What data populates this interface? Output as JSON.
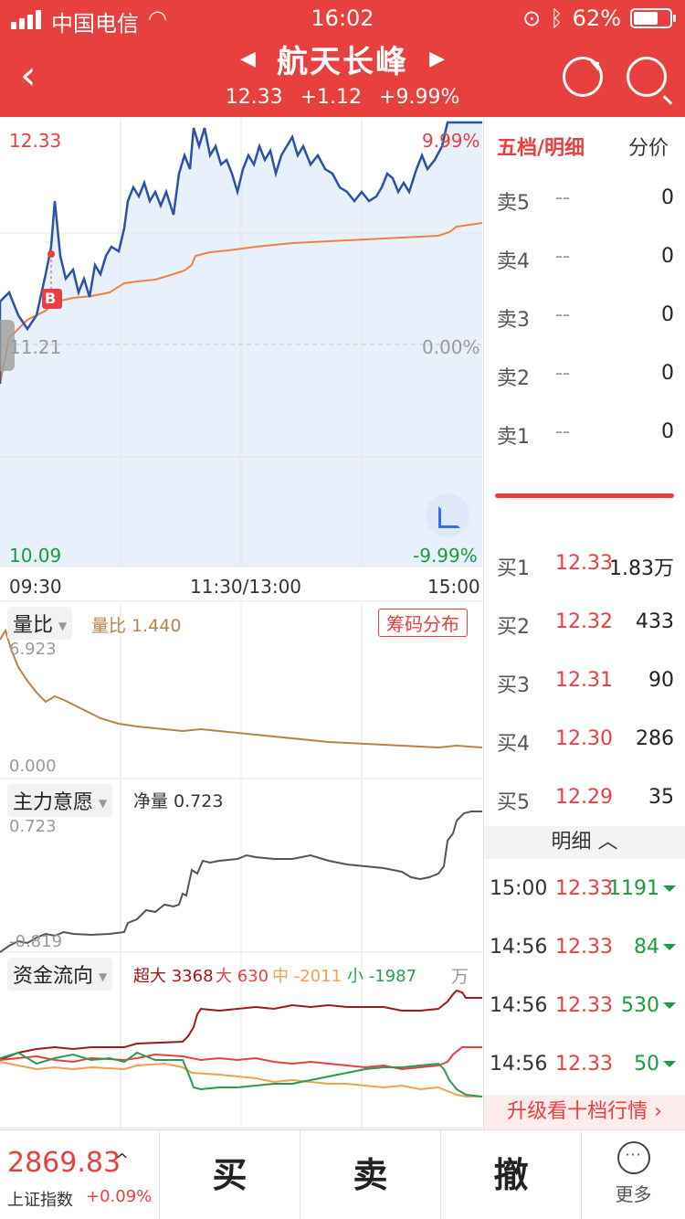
{
  "status": {
    "carrier": "中国电信",
    "time": "16:02",
    "battery": "62%"
  },
  "header": {
    "title": "航天长峰",
    "price": "12.33",
    "change": "+1.12",
    "change_pct": "+9.99%"
  },
  "chart": {
    "price_high": "12.33",
    "price_mid": "11.21",
    "price_low": "10.09",
    "pct_high": "9.99%",
    "pct_mid": "0.00%",
    "pct_low": "-9.99%",
    "time_start": "09:30",
    "time_mid": "11:30/13:00",
    "time_end": "15:00",
    "buy_marker": "B",
    "volume_ratio": {
      "tag": "量比",
      "label": "量比 1.440",
      "max": "6.923",
      "min": "0.000",
      "chip_button": "筹码分布"
    },
    "main_force": {
      "tag": "主力意愿",
      "label": "净量 0.723",
      "max": "0.723",
      "min": "-0.819"
    },
    "money_flow": {
      "tag": "资金流向",
      "super": "超大 3368",
      "large": "大 630",
      "medium": "中 -2011",
      "small": "小 -1987",
      "unit": "万"
    },
    "colors": {
      "price": "#2a52a8",
      "avg": "#f0803c",
      "fill": "#e8f0fb",
      "up": "#e8403e",
      "down": "#1a9b3f"
    }
  },
  "book": {
    "tab_active": "五档/明细",
    "tab_other": "分价",
    "asks": [
      {
        "label": "卖5",
        "price": "--",
        "vol": "0"
      },
      {
        "label": "卖4",
        "price": "--",
        "vol": "0"
      },
      {
        "label": "卖3",
        "price": "--",
        "vol": "0"
      },
      {
        "label": "卖2",
        "price": "--",
        "vol": "0"
      },
      {
        "label": "卖1",
        "price": "--",
        "vol": "0"
      }
    ],
    "bids": [
      {
        "label": "买1",
        "price": "12.33",
        "vol": "1.83万"
      },
      {
        "label": "买2",
        "price": "12.32",
        "vol": "433"
      },
      {
        "label": "买3",
        "price": "12.31",
        "vol": "90"
      },
      {
        "label": "买4",
        "price": "12.30",
        "vol": "286"
      },
      {
        "label": "买5",
        "price": "12.29",
        "vol": "35"
      }
    ],
    "detail_header": "明细",
    "details": [
      {
        "time": "15:00",
        "price": "12.33",
        "vol": "1191"
      },
      {
        "time": "14:56",
        "price": "12.33",
        "vol": "84"
      },
      {
        "time": "14:56",
        "price": "12.33",
        "vol": "530"
      },
      {
        "time": "14:56",
        "price": "12.33",
        "vol": "50"
      }
    ],
    "upgrade": "升级看十档行情"
  },
  "bottom": {
    "index_value": "2869.83",
    "index_name": "上证指数",
    "index_change": "+0.09%",
    "buy": "买",
    "sell": "卖",
    "cancel": "撤",
    "more": "更多"
  }
}
